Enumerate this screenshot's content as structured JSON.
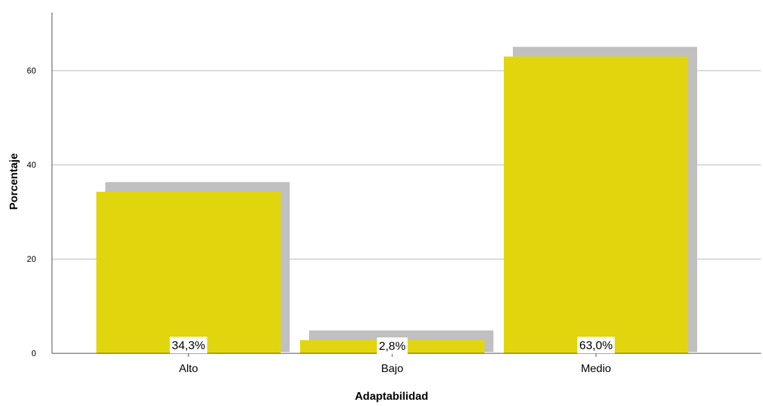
{
  "chart_data": {
    "type": "bar",
    "categories": [
      "Alto",
      "Bajo",
      "Medio"
    ],
    "values": [
      34.3,
      2.8,
      63.0
    ],
    "data_labels": [
      "34,3%",
      "2,8%",
      "63,0%"
    ],
    "xlabel": "Adaptabilidad",
    "ylabel": "Porcentaje",
    "ylim": [
      0,
      72
    ],
    "yticks": [
      0,
      20,
      40,
      60
    ],
    "grid": true,
    "bar_color": "#e1d60e",
    "shadow_color": "#c0c0c0",
    "bar_style": "3d-shadow"
  }
}
